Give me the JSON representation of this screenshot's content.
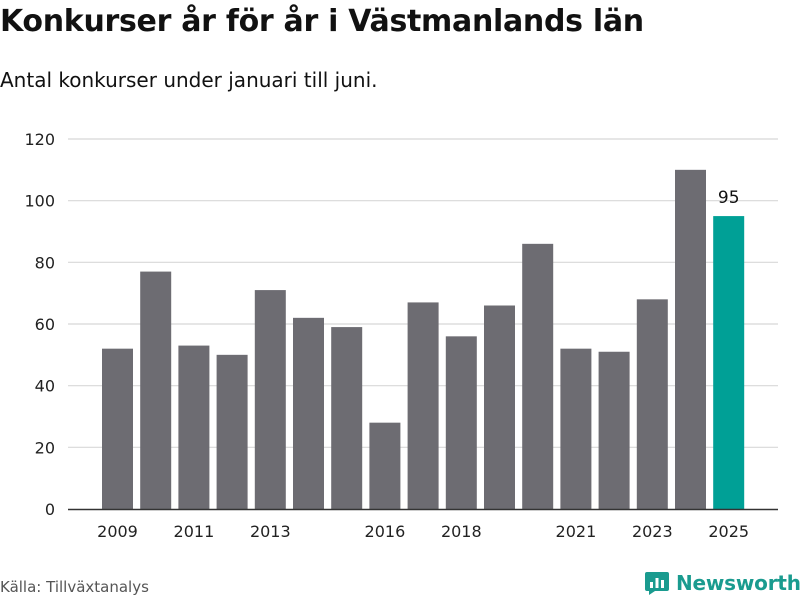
{
  "header": {
    "title": "Konkurser år för år i Västmanlands län",
    "subtitle": "Antal konkurser under januari till juni."
  },
  "footer": {
    "source": "Källa: Tillväxtanalys",
    "brand": "Newsworthy",
    "brand_icon": "newsworthy-logo-icon"
  },
  "colors": {
    "bar": "#6d6c72",
    "highlight": "#00a096",
    "grid": "#d8d8d8",
    "brand": "#1a9b8f"
  },
  "chart_data": {
    "type": "bar",
    "categories": [
      "2009",
      "2010",
      "2011",
      "2012",
      "2013",
      "2014",
      "2015",
      "2016",
      "2017",
      "2018",
      "2019",
      "2020",
      "2021",
      "2022",
      "2023",
      "2024",
      "2025"
    ],
    "values": [
      52,
      77,
      53,
      50,
      71,
      62,
      59,
      28,
      67,
      56,
      66,
      86,
      52,
      51,
      68,
      110,
      95
    ],
    "x_tick_labels": [
      "2009",
      "2011",
      "2013",
      "2016",
      "2018",
      "2021",
      "2023",
      "2025"
    ],
    "y_ticks": [
      0,
      20,
      40,
      60,
      80,
      100,
      120
    ],
    "ylim": [
      0,
      120
    ],
    "highlight_category": "2025",
    "data_labels": [
      {
        "category": "2025",
        "text": "95"
      }
    ],
    "xlabel": "",
    "ylabel": "",
    "grid": true,
    "legend": false
  }
}
